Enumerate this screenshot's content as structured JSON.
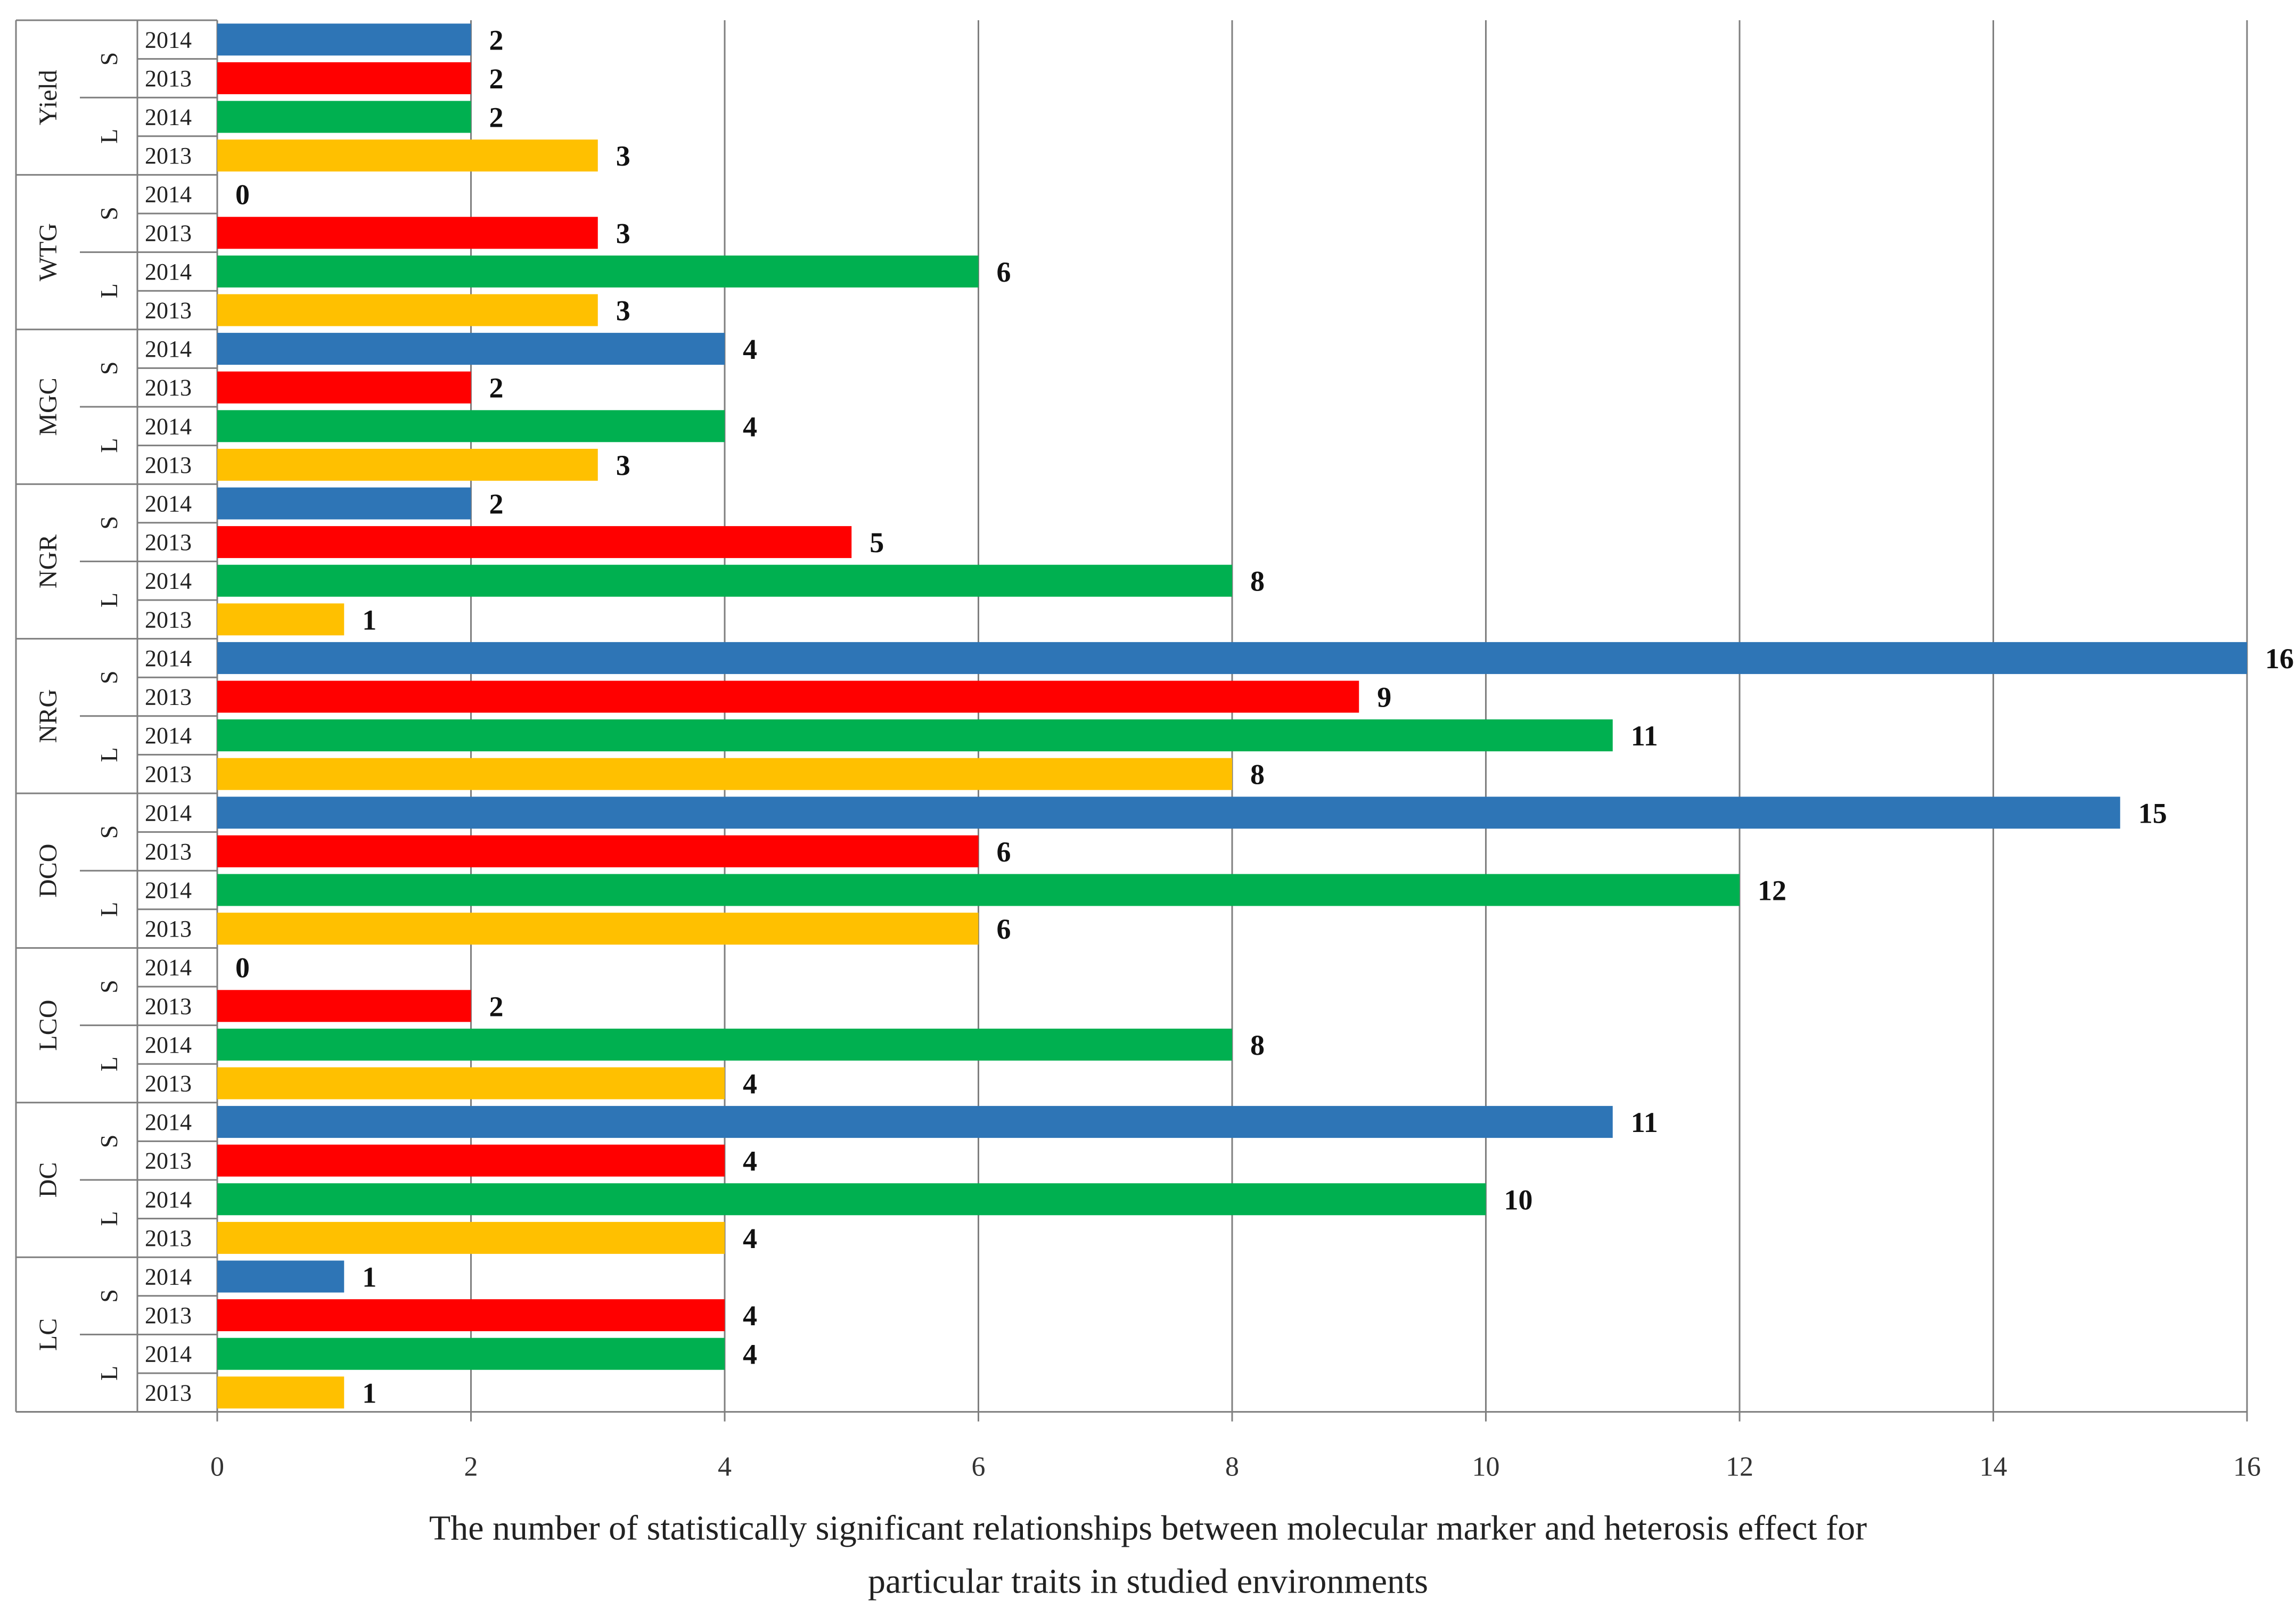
{
  "chart_data": {
    "type": "bar",
    "orientation": "horizontal",
    "xlabel_lines": [
      "The number of statistically significant relationships between molecular marker and heterosis effect for",
      "particular traits in studied environments"
    ],
    "xlim": [
      0,
      16
    ],
    "x_ticks": [
      "0",
      "2",
      "4",
      "6",
      "8",
      "10",
      "12",
      "14",
      "16"
    ],
    "grid": "vertical",
    "colors": {
      "S2014": "#2E75B6",
      "S2013": "#FF0000",
      "L2014": "#00B050",
      "L2013": "#FFC000"
    },
    "groups": [
      {
        "trait": "Yield",
        "sublocations": [
          {
            "loc": "S",
            "bars": [
              {
                "year": "2014",
                "key": "S2014",
                "value": 2
              },
              {
                "year": "2013",
                "key": "S2013",
                "value": 2
              }
            ]
          },
          {
            "loc": "L",
            "bars": [
              {
                "year": "2014",
                "key": "L2014",
                "value": 2
              },
              {
                "year": "2013",
                "key": "L2013",
                "value": 3
              }
            ]
          }
        ]
      },
      {
        "trait": "WTG",
        "sublocations": [
          {
            "loc": "S",
            "bars": [
              {
                "year": "2014",
                "key": "S2014",
                "value": 0
              },
              {
                "year": "2013",
                "key": "S2013",
                "value": 3
              }
            ]
          },
          {
            "loc": "L",
            "bars": [
              {
                "year": "2014",
                "key": "L2014",
                "value": 6
              },
              {
                "year": "2013",
                "key": "L2013",
                "value": 3
              }
            ]
          }
        ]
      },
      {
        "trait": "MGC",
        "sublocations": [
          {
            "loc": "S",
            "bars": [
              {
                "year": "2014",
                "key": "S2014",
                "value": 4
              },
              {
                "year": "2013",
                "key": "S2013",
                "value": 2
              }
            ]
          },
          {
            "loc": "L",
            "bars": [
              {
                "year": "2014",
                "key": "L2014",
                "value": 4
              },
              {
                "year": "2013",
                "key": "L2013",
                "value": 3
              }
            ]
          }
        ]
      },
      {
        "trait": "NGR",
        "sublocations": [
          {
            "loc": "S",
            "bars": [
              {
                "year": "2014",
                "key": "S2014",
                "value": 2
              },
              {
                "year": "2013",
                "key": "S2013",
                "value": 5
              }
            ]
          },
          {
            "loc": "L",
            "bars": [
              {
                "year": "2014",
                "key": "L2014",
                "value": 8
              },
              {
                "year": "2013",
                "key": "L2013",
                "value": 1
              }
            ]
          }
        ]
      },
      {
        "trait": "NRG",
        "sublocations": [
          {
            "loc": "S",
            "bars": [
              {
                "year": "2014",
                "key": "S2014",
                "value": 16
              },
              {
                "year": "2013",
                "key": "S2013",
                "value": 9
              }
            ]
          },
          {
            "loc": "L",
            "bars": [
              {
                "year": "2014",
                "key": "L2014",
                "value": 11
              },
              {
                "year": "2013",
                "key": "L2013",
                "value": 8
              }
            ]
          }
        ]
      },
      {
        "trait": "DCO",
        "sublocations": [
          {
            "loc": "S",
            "bars": [
              {
                "year": "2014",
                "key": "S2014",
                "value": 15
              },
              {
                "year": "2013",
                "key": "S2013",
                "value": 6
              }
            ]
          },
          {
            "loc": "L",
            "bars": [
              {
                "year": "2014",
                "key": "L2014",
                "value": 12
              },
              {
                "year": "2013",
                "key": "L2013",
                "value": 6
              }
            ]
          }
        ]
      },
      {
        "trait": "LCO",
        "sublocations": [
          {
            "loc": "S",
            "bars": [
              {
                "year": "2014",
                "key": "S2014",
                "value": 0
              },
              {
                "year": "2013",
                "key": "S2013",
                "value": 2
              }
            ]
          },
          {
            "loc": "L",
            "bars": [
              {
                "year": "2014",
                "key": "L2014",
                "value": 8
              },
              {
                "year": "2013",
                "key": "L2013",
                "value": 4
              }
            ]
          }
        ]
      },
      {
        "trait": "DC",
        "sublocations": [
          {
            "loc": "S",
            "bars": [
              {
                "year": "2014",
                "key": "S2014",
                "value": 11
              },
              {
                "year": "2013",
                "key": "S2013",
                "value": 4
              }
            ]
          },
          {
            "loc": "L",
            "bars": [
              {
                "year": "2014",
                "key": "L2014",
                "value": 10
              },
              {
                "year": "2013",
                "key": "L2013",
                "value": 4
              }
            ]
          }
        ]
      },
      {
        "trait": "LC",
        "sublocations": [
          {
            "loc": "S",
            "bars": [
              {
                "year": "2014",
                "key": "S2014",
                "value": 1
              },
              {
                "year": "2013",
                "key": "S2013",
                "value": 4
              }
            ]
          },
          {
            "loc": "L",
            "bars": [
              {
                "year": "2014",
                "key": "L2014",
                "value": 4
              },
              {
                "year": "2013",
                "key": "L2013",
                "value": 1
              }
            ]
          }
        ]
      }
    ]
  }
}
